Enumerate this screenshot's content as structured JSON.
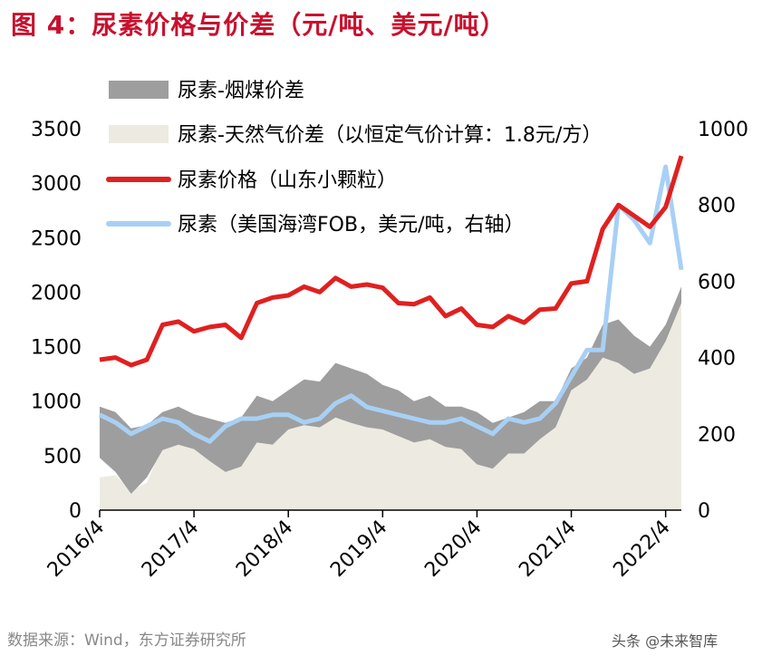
{
  "header": {
    "title": "图 4：尿素价格与价差（元/吨、美元/吨）"
  },
  "footer": {
    "source": "数据来源：Wind，东方证券研究所",
    "watermark": "头条 @未来智库"
  },
  "colors": {
    "gray_band": "#9e9e9e",
    "beige_area": "#edebe1",
    "red_line": "#e02020",
    "blue_line": "#a8d0f5",
    "title": "#c8102e"
  },
  "chart_data": {
    "type": "line",
    "x_tick_labels": [
      "2016/4",
      "2017/4",
      "2018/4",
      "2019/4",
      "2020/4",
      "2021/4",
      "2022/4"
    ],
    "x_range": [
      "2016/4",
      "2022/6"
    ],
    "y_left": {
      "ticks": [
        0,
        500,
        1000,
        1500,
        2000,
        2500,
        3000,
        3500
      ],
      "range": [
        0,
        3500
      ]
    },
    "y_right": {
      "ticks": [
        0,
        200,
        400,
        600,
        800,
        1000
      ],
      "range": [
        0,
        1000
      ]
    },
    "legend": [
      {
        "label": "尿素-烟煤价差",
        "style": "area-gray"
      },
      {
        "label": "尿素-天然气价差（以恒定气价计算：1.8元/方）",
        "style": "area-beige"
      },
      {
        "label": "尿素价格（山东小颗粒）",
        "style": "line-red"
      },
      {
        "label": "尿素（美国海湾FOB，美元/吨，右轴）",
        "style": "line-blue"
      }
    ],
    "series": [
      {
        "name": "尿素价格（山东小颗粒）",
        "axis": "left",
        "x": [
          "2016/4",
          "2016/6",
          "2016/8",
          "2016/10",
          "2016/12",
          "2017/2",
          "2017/4",
          "2017/6",
          "2017/8",
          "2017/10",
          "2017/12",
          "2018/2",
          "2018/4",
          "2018/6",
          "2018/8",
          "2018/10",
          "2018/12",
          "2019/2",
          "2019/4",
          "2019/6",
          "2019/8",
          "2019/10",
          "2019/12",
          "2020/2",
          "2020/4",
          "2020/6",
          "2020/8",
          "2020/10",
          "2020/12",
          "2021/2",
          "2021/4",
          "2021/6",
          "2021/8",
          "2021/10",
          "2021/12",
          "2022/2",
          "2022/4",
          "2022/6"
        ],
        "values": [
          1380,
          1400,
          1330,
          1380,
          1700,
          1730,
          1640,
          1680,
          1700,
          1580,
          1900,
          1950,
          1970,
          2050,
          2000,
          2130,
          2050,
          2070,
          2040,
          1900,
          1890,
          1950,
          1780,
          1850,
          1700,
          1680,
          1780,
          1720,
          1840,
          1850,
          2080,
          2100,
          2580,
          2800,
          2700,
          2600,
          2780,
          3250
        ]
      },
      {
        "name": "尿素（美国海湾FOB，美元/吨，右轴）",
        "axis": "right",
        "x": [
          "2016/4",
          "2016/6",
          "2016/8",
          "2016/10",
          "2016/12",
          "2017/2",
          "2017/4",
          "2017/6",
          "2017/8",
          "2017/10",
          "2017/12",
          "2018/2",
          "2018/4",
          "2018/6",
          "2018/8",
          "2018/10",
          "2018/12",
          "2019/2",
          "2019/4",
          "2019/6",
          "2019/8",
          "2019/10",
          "2019/12",
          "2020/2",
          "2020/4",
          "2020/6",
          "2020/8",
          "2020/10",
          "2020/12",
          "2021/2",
          "2021/4",
          "2021/6",
          "2021/8",
          "2021/10",
          "2021/12",
          "2022/2",
          "2022/4",
          "2022/6"
        ],
        "values": [
          250,
          230,
          200,
          220,
          240,
          230,
          200,
          180,
          220,
          240,
          240,
          250,
          250,
          230,
          240,
          280,
          300,
          270,
          260,
          250,
          240,
          230,
          230,
          240,
          220,
          200,
          240,
          230,
          240,
          280,
          350,
          420,
          420,
          800,
          760,
          700,
          900,
          630
        ]
      },
      {
        "name": "尿素-烟煤价差",
        "axis": "left",
        "x": [
          "2016/4",
          "2016/6",
          "2016/8",
          "2016/10",
          "2016/12",
          "2017/2",
          "2017/4",
          "2017/6",
          "2017/8",
          "2017/10",
          "2017/12",
          "2018/2",
          "2018/4",
          "2018/6",
          "2018/8",
          "2018/10",
          "2018/12",
          "2019/2",
          "2019/4",
          "2019/6",
          "2019/8",
          "2019/10",
          "2019/12",
          "2020/2",
          "2020/4",
          "2020/6",
          "2020/8",
          "2020/10",
          "2020/12",
          "2021/2",
          "2021/4",
          "2021/6",
          "2021/8",
          "2021/10",
          "2021/12",
          "2022/2",
          "2022/4",
          "2022/6"
        ],
        "upper": [
          950,
          900,
          750,
          780,
          900,
          950,
          880,
          840,
          800,
          850,
          1050,
          1000,
          1100,
          1200,
          1180,
          1350,
          1300,
          1250,
          1150,
          1100,
          1000,
          1050,
          950,
          950,
          900,
          800,
          850,
          900,
          1000,
          1000,
          1300,
          1400,
          1700,
          1750,
          1600,
          1500,
          1700,
          2050
        ],
        "lower": [
          480,
          350,
          150,
          300,
          550,
          600,
          560,
          450,
          350,
          400,
          620,
          600,
          740,
          780,
          760,
          850,
          800,
          760,
          740,
          680,
          620,
          650,
          580,
          560,
          420,
          380,
          520,
          520,
          650,
          760,
          1100,
          1200,
          1400,
          1350,
          1250,
          1300,
          1550,
          1900
        ]
      },
      {
        "name": "尿素-天然气价差（以恒定气价计算：1.8元/方）",
        "axis": "left",
        "x": [
          "2016/4",
          "2016/6",
          "2016/8",
          "2016/10",
          "2016/12",
          "2017/2",
          "2017/4",
          "2017/6",
          "2017/8",
          "2017/10",
          "2017/12",
          "2018/2",
          "2018/4",
          "2018/6",
          "2018/8",
          "2018/10",
          "2018/12",
          "2019/2",
          "2019/4",
          "2019/6",
          "2019/8",
          "2019/10",
          "2019/12",
          "2020/2",
          "2020/4",
          "2020/6",
          "2020/8",
          "2020/10",
          "2020/12",
          "2021/2",
          "2021/4",
          "2021/6",
          "2021/8",
          "2021/10",
          "2021/12",
          "2022/2",
          "2022/4",
          "2022/6"
        ],
        "values": [
          300,
          320,
          180,
          250,
          600,
          640,
          560,
          500,
          500,
          540,
          770,
          780,
          820,
          880,
          860,
          920,
          870,
          880,
          840,
          760,
          740,
          780,
          680,
          700,
          620,
          560,
          620,
          640,
          720,
          760,
          1100,
          1300,
          1550,
          1550,
          1400,
          1400,
          1650,
          2000
        ]
      }
    ]
  }
}
